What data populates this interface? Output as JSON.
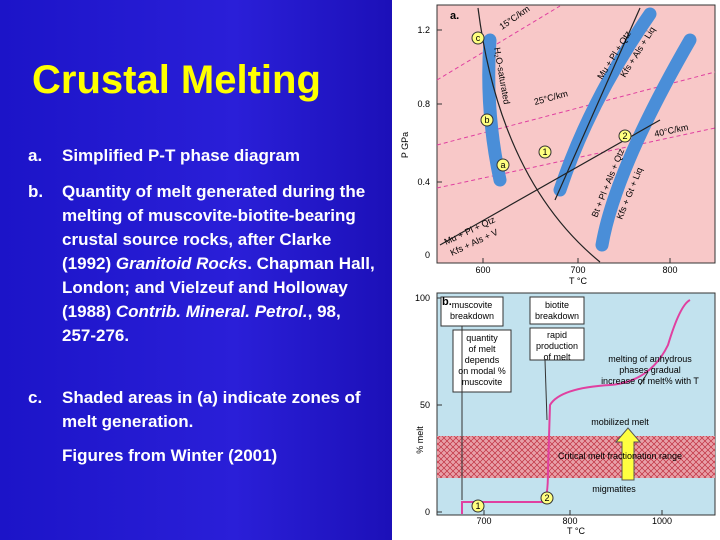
{
  "title": "Crustal Melting",
  "items": [
    {
      "label": "a.",
      "segments": [
        {
          "text": "Simplified P-T phase diagram",
          "italic": false
        }
      ]
    },
    {
      "label": "b.",
      "segments": [
        {
          "text": "Quantity of melt generated during the melting of muscovite-biotite-bearing crustal source rocks, after Clarke (1992) ",
          "italic": false
        },
        {
          "text": "Granitoid Rocks",
          "italic": true
        },
        {
          "text": ". Chapman Hall, London; and Vielzeuf and Holloway (1988) ",
          "italic": false
        },
        {
          "text": "Contrib. Mineral. Petrol.",
          "italic": true
        },
        {
          "text": ", 98, 257-276.",
          "italic": false
        }
      ]
    },
    {
      "label": "c.",
      "segments": [
        {
          "text": "Shaded areas in (a) indicate zones of melt generation.",
          "italic": false
        }
      ]
    }
  ],
  "note": "Figures from Winter (2001)",
  "figure_a": {
    "panel": "a.",
    "y_axis_label": "P GPa",
    "x_axis_label": "T °C",
    "y_ticks": [
      "1.2",
      "0.8",
      "0.4",
      "0"
    ],
    "x_ticks": [
      "600",
      "700",
      "800"
    ],
    "geotherms": [
      "15°C/km",
      "25°C/km",
      "40°C/km"
    ],
    "curve_labels": [
      "H₂O-saturated",
      "Mu + Pl + Qtz",
      "Kfs + Als + Liq",
      "Bt + Pl + Als + Qtz",
      "Kfs + Gt + Liq",
      "Mu + Pl + Qtz",
      "Kfs + Als + V"
    ],
    "markers": [
      "c",
      "b",
      "a",
      "1",
      "2"
    ]
  },
  "figure_b": {
    "panel": "b.",
    "y_axis_label": "% melt",
    "x_axis_label": "T °C",
    "y_ticks": [
      "100",
      "50",
      "0"
    ],
    "x_ticks": [
      "700",
      "800",
      "1000"
    ],
    "box_muscovite": [
      "muscovite",
      "breakdown"
    ],
    "box_quantity": [
      "quantity",
      "of melt",
      "depends",
      "on modal %",
      "muscovite"
    ],
    "box_biotite": [
      "biotite",
      "breakdown"
    ],
    "box_rapid": [
      "rapid",
      "production",
      "of melt"
    ],
    "anhydrous": [
      "melting of anhydrous",
      "phases gradual",
      "increase of melt% with T"
    ],
    "mobilized": "mobilized melt",
    "critical": "Critical melt fractionation range",
    "migmatites": "migmatites",
    "markers": [
      "1",
      "2"
    ]
  }
}
